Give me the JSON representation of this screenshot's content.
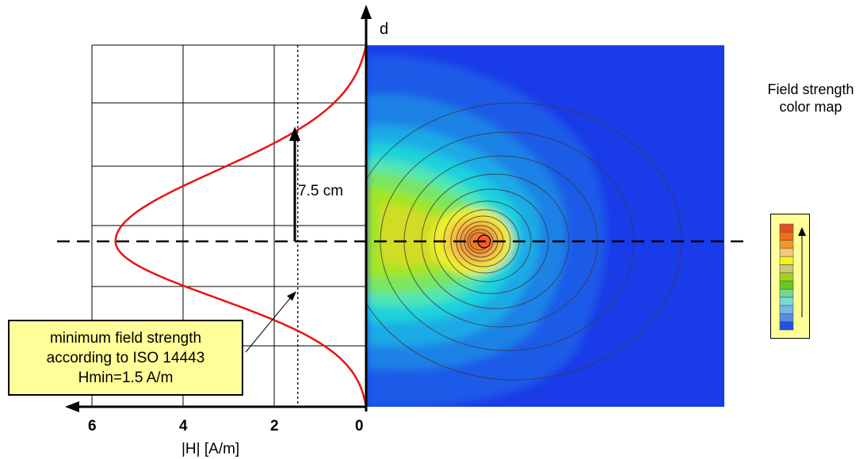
{
  "axes": {
    "vertical_label": "d",
    "horizontal_label": "|H| [A/m]",
    "ticks": [
      "6",
      "4",
      "2",
      "0"
    ]
  },
  "annotations": {
    "distance_label": "7.5 cm",
    "note_lines": [
      "minimum field strength",
      "according to ISO 14443",
      "Hmin=1.5 A/m"
    ]
  },
  "legend": {
    "title_lines": [
      "Field strength",
      "color map"
    ],
    "colors": [
      "#e64b1e",
      "#f06e1e",
      "#f5961e",
      "#f0c878",
      "#f5f01e",
      "#c8c878",
      "#a0d21e",
      "#64c81e",
      "#78d296",
      "#78dcd2",
      "#78b4e6",
      "#5a8cdc",
      "#1e50e6"
    ]
  },
  "chart_data": {
    "type": "line",
    "xlabel": "|H| [A/m]",
    "ylabel": "d",
    "x_ticks": [
      6,
      4,
      2,
      0
    ],
    "threshold_x": 1.5,
    "peak_x": 5.5,
    "distance_cm": 7.5
  }
}
